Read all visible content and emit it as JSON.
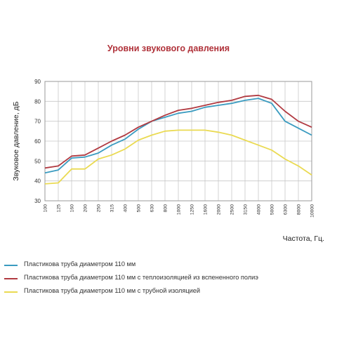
{
  "chart_data": {
    "type": "line",
    "title": "Уровни звукового давления",
    "xlabel": "Частота, Гц.",
    "ylabel": "Звуковое давление, дБ",
    "ylim": [
      30,
      90
    ],
    "yticks": [
      30,
      40,
      50,
      60,
      70,
      80,
      90
    ],
    "grid": true,
    "legend_position": "bottom",
    "categories": [
      "100",
      "125",
      "160",
      "200",
      "250",
      "315",
      "400",
      "500",
      "630",
      "800",
      "1000",
      "1250",
      "1600",
      "2000",
      "2500",
      "3150",
      "4000",
      "5000",
      "6300",
      "8000",
      "10000"
    ],
    "series": [
      {
        "name": "Пластикова труба диаметром 110 мм",
        "color": "#3a9bc0",
        "values": [
          44,
          45.5,
          51.5,
          52,
          54,
          58,
          61,
          66,
          70,
          72,
          74,
          75,
          77,
          78,
          79,
          80.5,
          81.5,
          79,
          70,
          66.5,
          63
        ]
      },
      {
        "name": "Пластикова труба диаметром 110 мм с теплоизоляцией из вспененного полиэ",
        "color": "#b13a41",
        "values": [
          46.5,
          47.5,
          52.5,
          53,
          56.5,
          60,
          63,
          67,
          70,
          73,
          75.5,
          76.5,
          78,
          79.5,
          80.5,
          82.5,
          83,
          81,
          75,
          70,
          67
        ]
      },
      {
        "name": "Пластикова труба диаметром 110 мм с трубной изоляцией",
        "color": "#eada52",
        "values": [
          38.5,
          39,
          46,
          46,
          51,
          53,
          56,
          60.5,
          63,
          65,
          65.5,
          65.5,
          65.5,
          64.5,
          63,
          60.5,
          58,
          55.5,
          51,
          47.5,
          43
        ]
      }
    ]
  }
}
